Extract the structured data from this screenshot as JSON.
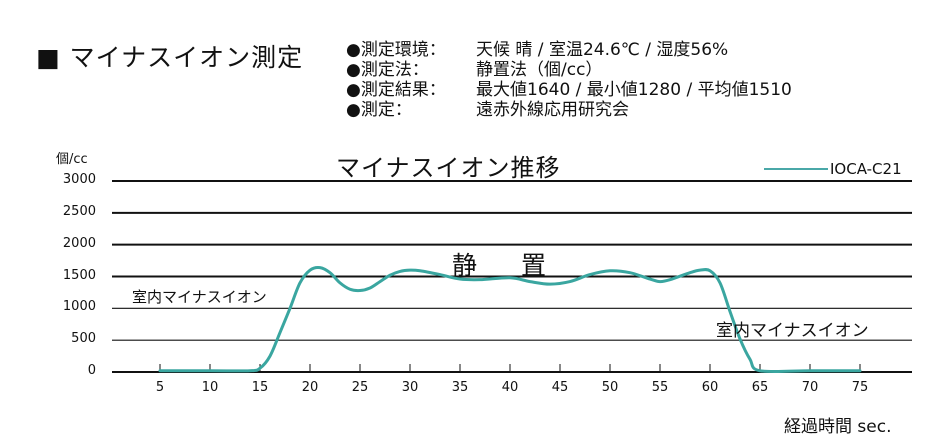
{
  "header": {
    "title": "■ マイナスイオン測定",
    "info": [
      {
        "label": "●測定環境：",
        "value": "天候 晴 / 室温24.6℃ / 湿度56%"
      },
      {
        "label": "●測定法：",
        "value": "静置法（個/cc）"
      },
      {
        "label": "●測定結果：",
        "value": "最大値1640 / 最小値1280 / 平均値1510"
      },
      {
        "label": "●測定：",
        "value": "遠赤外線応用研究会"
      }
    ]
  },
  "chart_data": {
    "type": "line",
    "title": "マイナスイオン推移",
    "xlabel": "経過時間 sec.",
    "ylabel": "個/cc",
    "xlim": [
      0,
      80
    ],
    "ylim": [
      0,
      3000
    ],
    "x_ticks": [
      "5",
      "10",
      "15",
      "20",
      "25",
      "30",
      "35",
      "40",
      "45",
      "50",
      "55",
      "60",
      "65",
      "70",
      "75"
    ],
    "y_ticks": [
      "3000",
      "2500",
      "2000",
      "1500",
      "1000",
      "500",
      "0"
    ],
    "grid": true,
    "legend_position": "top-right",
    "series": [
      {
        "name": "IOCA-C21",
        "color": "#3aa6a0",
        "x": [
          5,
          10,
          14,
          15,
          16,
          17,
          18,
          19,
          20,
          21,
          22,
          23,
          24,
          25,
          26,
          27,
          28,
          29,
          30,
          31,
          33,
          35,
          37,
          40,
          42,
          44,
          46,
          48,
          50,
          52,
          54,
          55,
          56,
          58,
          59,
          60,
          61,
          62,
          63,
          64,
          65,
          70,
          75
        ],
        "values": [
          20,
          20,
          20,
          60,
          250,
          620,
          1000,
          1400,
          1600,
          1640,
          1560,
          1400,
          1300,
          1280,
          1320,
          1420,
          1520,
          1580,
          1600,
          1590,
          1530,
          1460,
          1450,
          1480,
          1420,
          1380,
          1420,
          1530,
          1590,
          1560,
          1460,
          1420,
          1450,
          1560,
          1600,
          1590,
          1400,
          950,
          520,
          200,
          20,
          20,
          20
        ]
      }
    ],
    "annotations": [
      {
        "text": "室内マイナスイオン",
        "position": "left, before rise"
      },
      {
        "text": "静　置",
        "position": "center, above plateau"
      },
      {
        "text": "室内マイナスイオン",
        "position": "right, after drop"
      }
    ]
  },
  "chart": {
    "unit": "個/cc",
    "title": "マイナスイオン推移",
    "legend": "IOCA-C21",
    "annot_left": "室内マイナスイオン",
    "annot_center": "静 置",
    "annot_right": "室内マイナスイオン",
    "xlabel": "経過時間 sec.",
    "yticks": [
      "3000",
      "2500",
      "2000",
      "1500",
      "1000",
      "500",
      "0"
    ],
    "xticks": [
      "5",
      "10",
      "15",
      "20",
      "25",
      "30",
      "35",
      "40",
      "45",
      "50",
      "55",
      "60",
      "65",
      "70",
      "75"
    ]
  }
}
